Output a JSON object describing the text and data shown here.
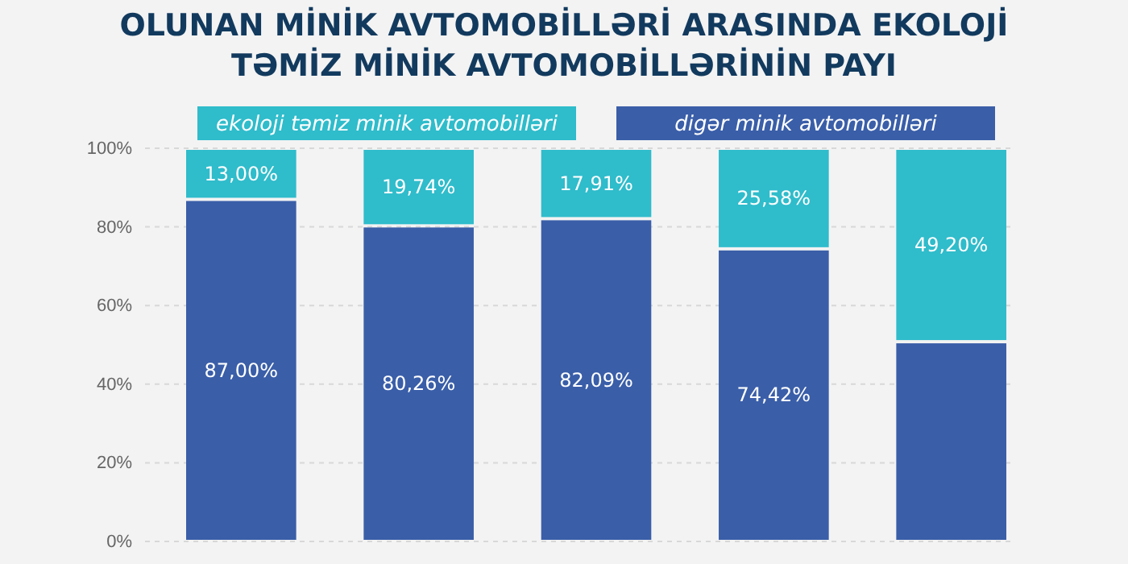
{
  "chart_data": {
    "type": "bar",
    "title": "OLUNAN MİNİK AVTOMOBİLLƏRİ ARASINDA EKOLOJİ TƏMİZ MİNİK AVTOMOBİLLƏRİNİN PAYI",
    "categories": [
      null,
      null,
      null,
      null,
      null
    ],
    "stacked": true,
    "series": [
      {
        "name": "digər minik avtomobilləri",
        "color": "#3a5ea8",
        "values": [
          87.0,
          80.26,
          82.09,
          74.42,
          50.8
        ],
        "value_labels": [
          "87,00%",
          "80,26%",
          "82,09%",
          "74,42%",
          null
        ]
      },
      {
        "name": "ekoloji təmiz minik avtomobilləri",
        "color": "#2fbccb",
        "values": [
          13.0,
          19.74,
          17.91,
          25.58,
          49.2
        ],
        "value_labels": [
          "13,00%",
          "19,74%",
          "17,91%",
          "25,58%",
          "49,20%"
        ]
      }
    ],
    "ylim": [
      0,
      100
    ],
    "yticks": [
      {
        "value": 0,
        "label": "0%"
      },
      {
        "value": 20,
        "label": "20%"
      },
      {
        "value": 40,
        "label": "40%"
      },
      {
        "value": 60,
        "label": "60%"
      },
      {
        "value": 80,
        "label": "80%"
      },
      {
        "value": 100,
        "label": "100%"
      }
    ],
    "grid": "y",
    "legend": "top",
    "tick_labels": "y"
  }
}
